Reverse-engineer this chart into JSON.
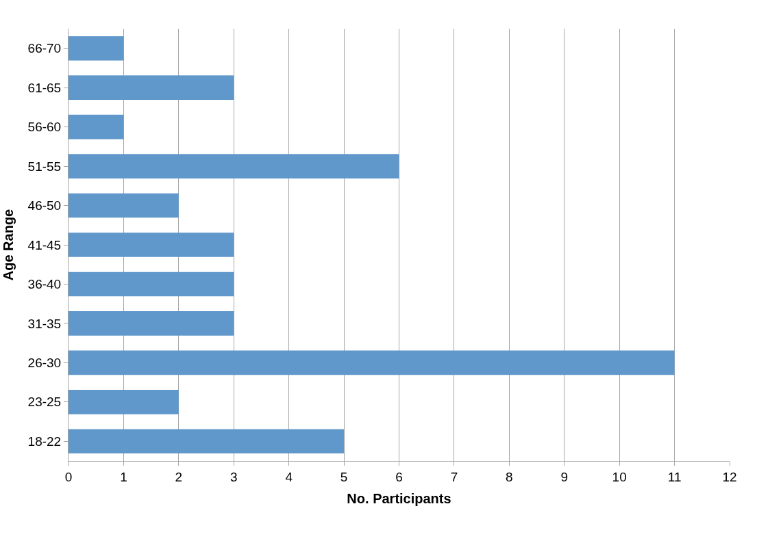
{
  "chart_data": {
    "type": "bar",
    "orientation": "horizontal",
    "xlabel": "No. Participants",
    "ylabel": "Age Range",
    "categories": [
      "66-70",
      "61-65",
      "56-60",
      "51-55",
      "46-50",
      "41-45",
      "36-40",
      "31-35",
      "26-30",
      "23-25",
      "18-22"
    ],
    "values": [
      1,
      3,
      1,
      6,
      2,
      3,
      3,
      3,
      11,
      2,
      5
    ],
    "color": "#6198cb",
    "xlim": [
      0,
      12
    ],
    "xticks": [
      0,
      1,
      2,
      3,
      4,
      5,
      6,
      7,
      8,
      9,
      10,
      11,
      12
    ],
    "grid": "x",
    "legend": false
  }
}
